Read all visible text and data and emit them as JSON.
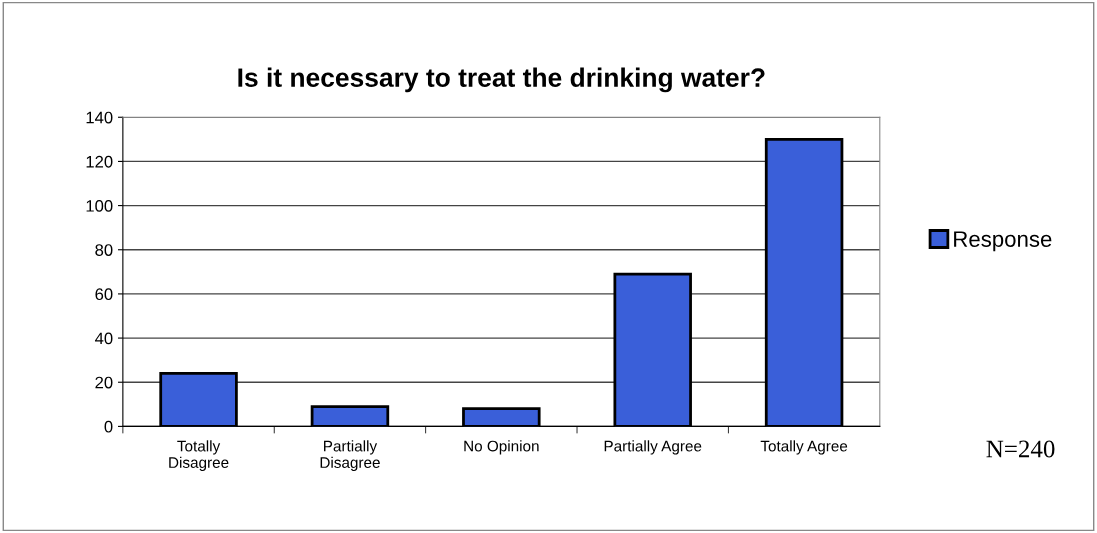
{
  "chart_data": {
    "type": "bar",
    "title": "Is it necessary to treat the drinking water?",
    "categories": [
      "Totally\nDisagree",
      "Partially\nDisagree",
      "No Opinion",
      "Partially Agree",
      "Totally Agree"
    ],
    "series": [
      {
        "name": "Response",
        "color": "#3a5fd9",
        "values": [
          24,
          9,
          8,
          69,
          130
        ]
      }
    ],
    "ylim": [
      0,
      140
    ],
    "yticks": [
      0,
      20,
      40,
      60,
      80,
      100,
      120,
      140
    ],
    "grid": "y",
    "legend": "right",
    "annotations": [
      "N=240"
    ]
  }
}
